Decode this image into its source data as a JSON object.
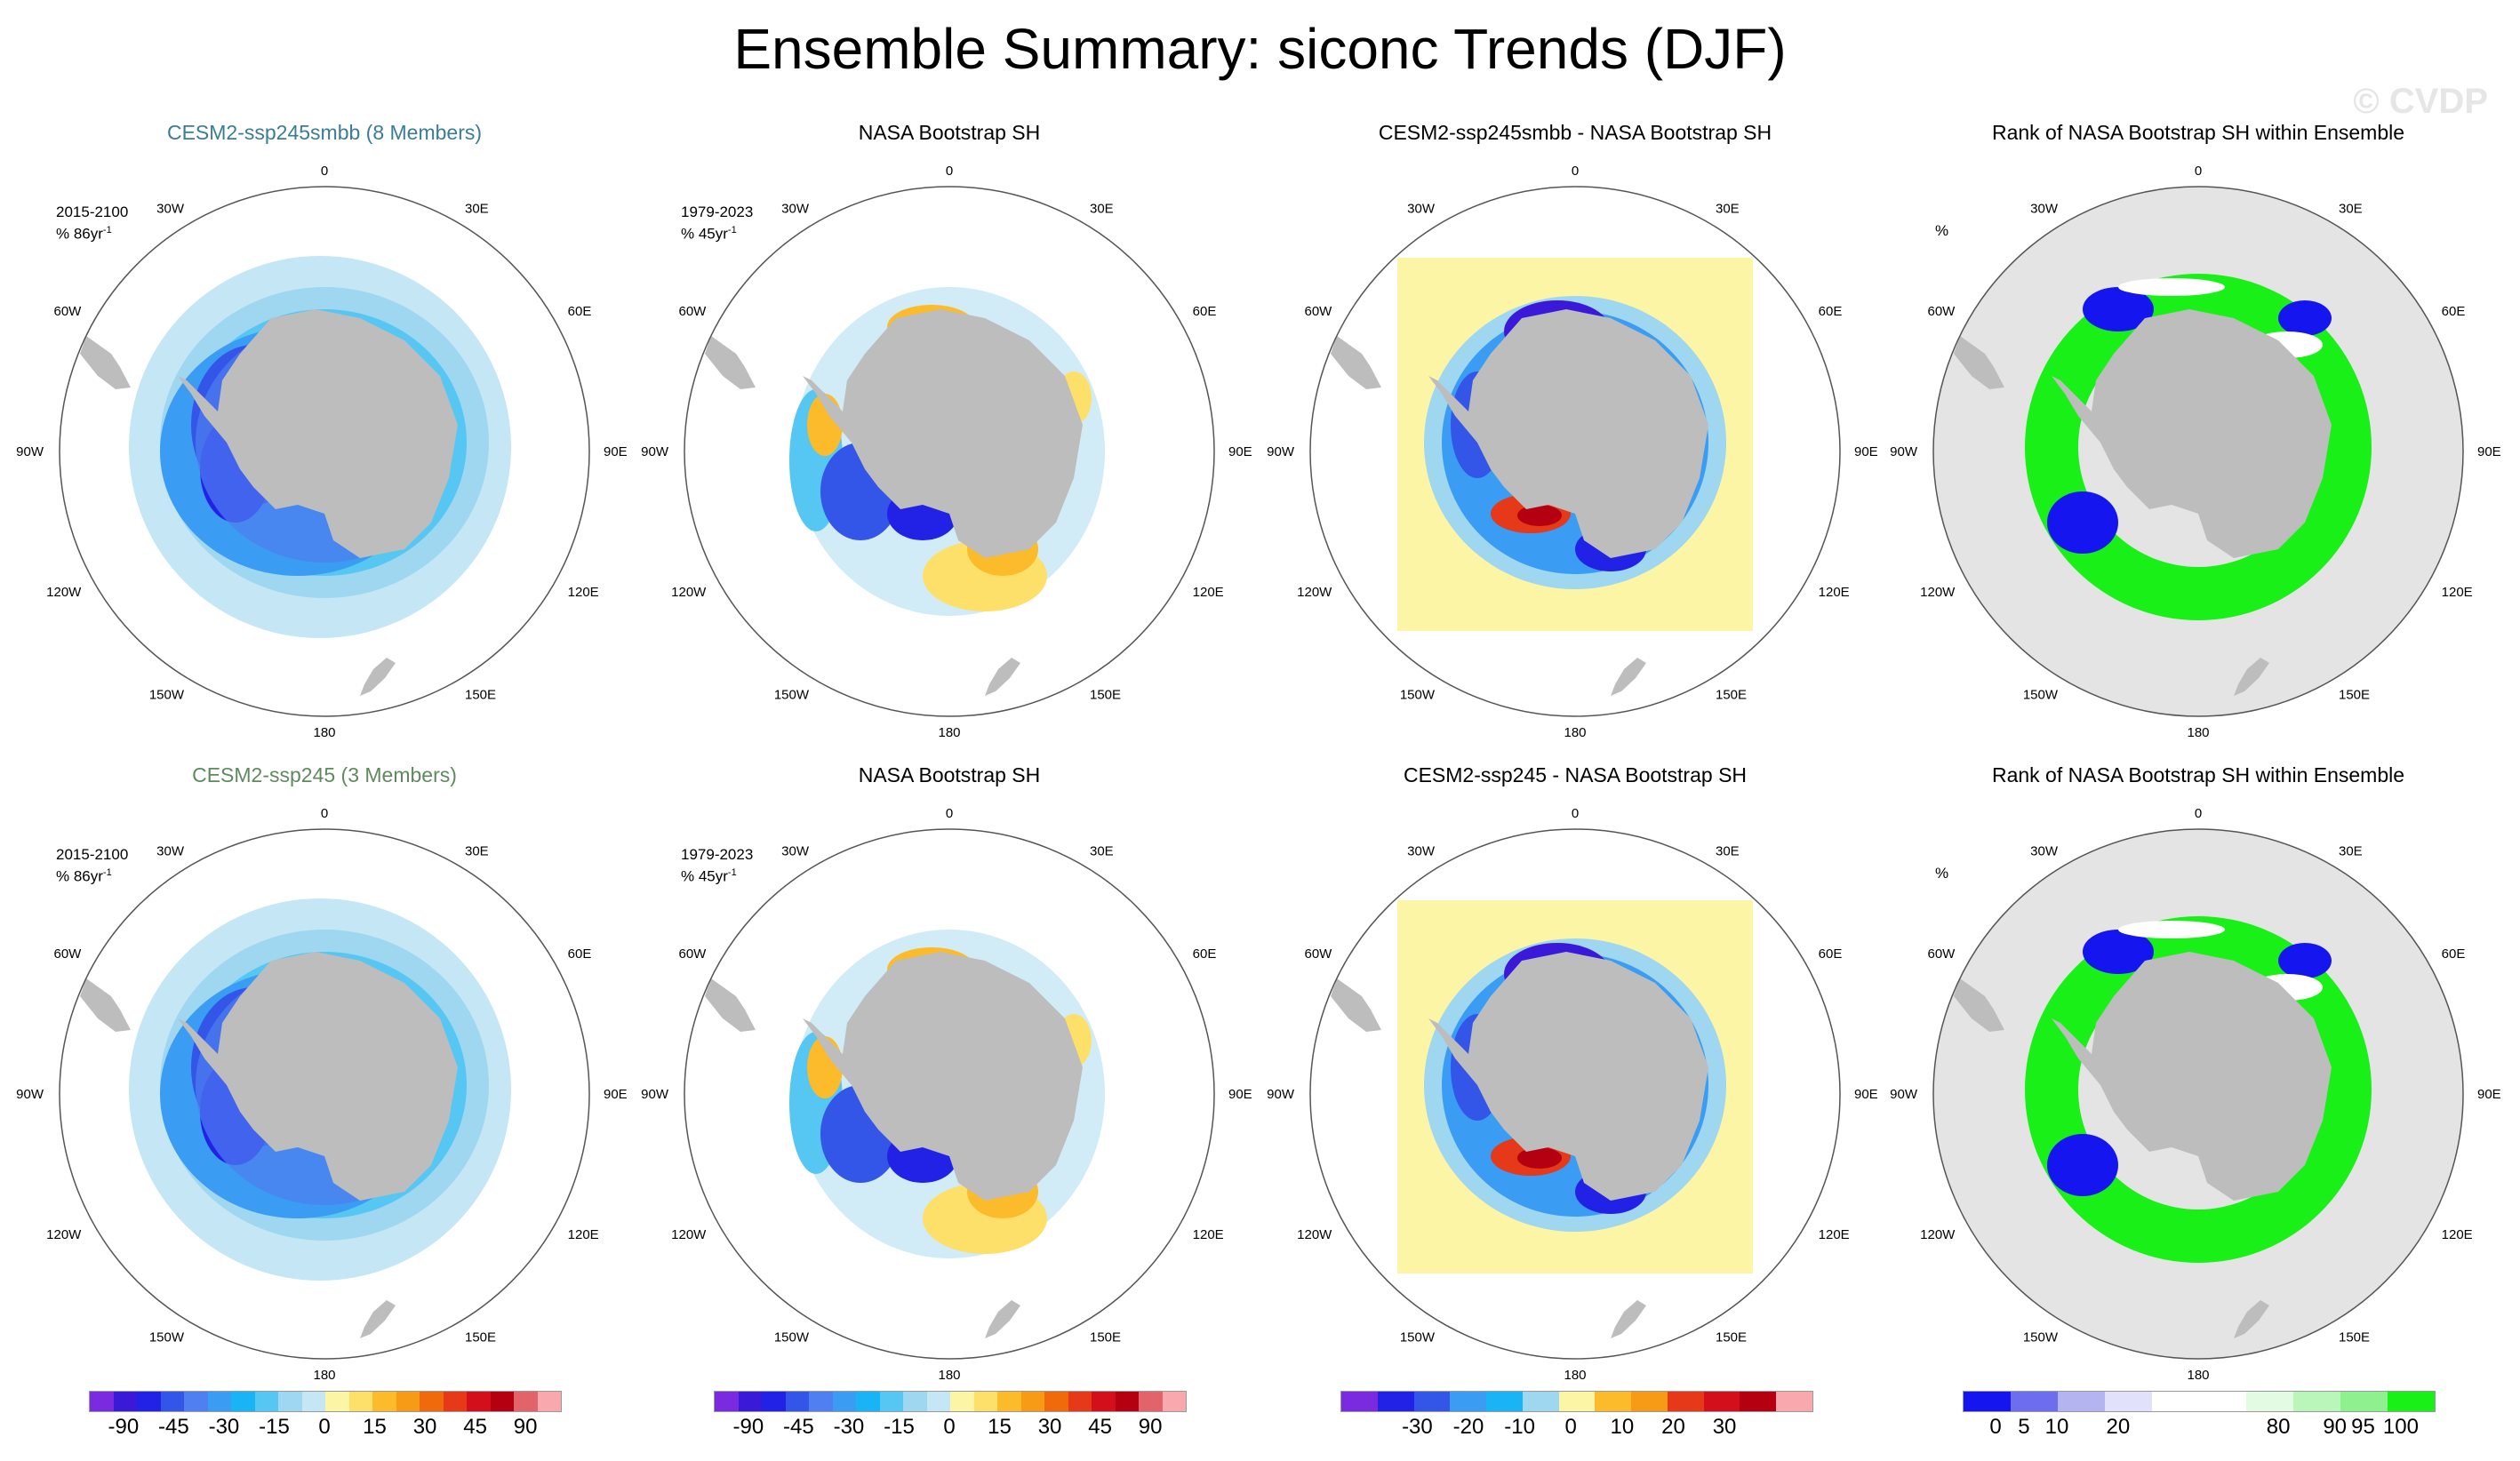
{
  "title": "Ensemble Summary: siconc Trends (DJF)",
  "watermark": "© CVDP",
  "lon_labels": [
    "0",
    "30E",
    "60E",
    "90E",
    "120E",
    "150E",
    "180",
    "150W",
    "120W",
    "90W",
    "60W",
    "30W"
  ],
  "panels": [
    {
      "title": "CESM2-ssp245smbb (8 Members)",
      "title_color": "#3a7d94",
      "period": "2015-2100",
      "units_main": "% 86yr",
      "units_sup": "-1",
      "kind": "model"
    },
    {
      "title": "NASA Bootstrap SH",
      "title_color": "#000000",
      "period": "1979-2023",
      "units_main": "% 45yr",
      "units_sup": "-1",
      "kind": "obs"
    },
    {
      "title": "CESM2-ssp245smbb - NASA Bootstrap SH",
      "title_color": "#000000",
      "period": "",
      "units_main": "",
      "units_sup": "",
      "kind": "diff"
    },
    {
      "title": "Rank of NASA Bootstrap SH within Ensemble",
      "title_color": "#000000",
      "period": "",
      "units_main": "%",
      "units_sup": "",
      "kind": "rank"
    },
    {
      "title": "CESM2-ssp245 (3 Members)",
      "title_color": "#5e8a5e",
      "period": "2015-2100",
      "units_main": "% 86yr",
      "units_sup": "-1",
      "kind": "model"
    },
    {
      "title": "NASA Bootstrap SH",
      "title_color": "#000000",
      "period": "1979-2023",
      "units_main": "% 45yr",
      "units_sup": "-1",
      "kind": "obs"
    },
    {
      "title": "CESM2-ssp245 - NASA Bootstrap SH",
      "title_color": "#000000",
      "period": "",
      "units_main": "",
      "units_sup": "",
      "kind": "diff"
    },
    {
      "title": "Rank of NASA Bootstrap SH within Ensemble",
      "title_color": "#000000",
      "period": "",
      "units_main": "%",
      "units_sup": "",
      "kind": "rank"
    }
  ],
  "chart_data": [
    {
      "type": "heatmap",
      "title": "CESM2-ssp245smbb (8 Members)",
      "projection": "south polar stereographic",
      "value_range": [
        -90,
        90
      ],
      "units": "% 86yr-1"
    },
    {
      "type": "heatmap",
      "title": "NASA Bootstrap SH",
      "projection": "south polar stereographic",
      "value_range": [
        -90,
        90
      ],
      "units": "% 45yr-1"
    },
    {
      "type": "heatmap",
      "title": "CESM2-ssp245smbb - NASA Bootstrap SH",
      "projection": "south polar stereographic",
      "value_range": [
        -30,
        30
      ]
    },
    {
      "type": "heatmap",
      "title": "Rank of NASA Bootstrap SH within Ensemble",
      "projection": "south polar stereographic",
      "value_range": [
        0,
        100
      ],
      "units": "%"
    },
    {
      "type": "heatmap",
      "title": "CESM2-ssp245 (3 Members)",
      "projection": "south polar stereographic",
      "value_range": [
        -90,
        90
      ],
      "units": "% 86yr-1"
    },
    {
      "type": "heatmap",
      "title": "NASA Bootstrap SH",
      "projection": "south polar stereographic",
      "value_range": [
        -90,
        90
      ],
      "units": "% 45yr-1"
    },
    {
      "type": "heatmap",
      "title": "CESM2-ssp245 - NASA Bootstrap SH",
      "projection": "south polar stereographic",
      "value_range": [
        -30,
        30
      ]
    },
    {
      "type": "heatmap",
      "title": "Rank of NASA Bootstrap SH within Ensemble",
      "projection": "south polar stereographic",
      "value_range": [
        0,
        100
      ],
      "units": "%"
    }
  ],
  "legends": [
    {
      "name": "trend",
      "ticks": [
        "-90",
        "-45",
        "-30",
        "-15",
        "0",
        "15",
        "30",
        "45",
        "90"
      ],
      "colors": [
        "#7a2be0",
        "#3a1ad8",
        "#2222e6",
        "#3355e8",
        "#4f7ff0",
        "#3a9cf2",
        "#19b4f5",
        "#56c6f2",
        "#9fd6f0",
        "#c5e6f5",
        "#fdf5a6",
        "#fde06a",
        "#fcbb2a",
        "#f79a15",
        "#f06a0c",
        "#e6391a",
        "#d20f1a",
        "#b50012",
        "#e3636b",
        "#f9a9ae"
      ]
    },
    {
      "name": "trend",
      "ticks": [
        "-90",
        "-45",
        "-30",
        "-15",
        "0",
        "15",
        "30",
        "45",
        "90"
      ],
      "colors": [
        "#7a2be0",
        "#3a1ad8",
        "#2222e6",
        "#3355e8",
        "#4f7ff0",
        "#3a9cf2",
        "#19b4f5",
        "#56c6f2",
        "#9fd6f0",
        "#c5e6f5",
        "#fdf5a6",
        "#fde06a",
        "#fcbb2a",
        "#f79a15",
        "#f06a0c",
        "#e6391a",
        "#d20f1a",
        "#b50012",
        "#e3636b",
        "#f9a9ae"
      ]
    },
    {
      "name": "diff",
      "ticks": [
        "-30",
        "-20",
        "-10",
        "0",
        "10",
        "20",
        "30"
      ],
      "colors": [
        "#7a2be0",
        "#2222e6",
        "#3355e8",
        "#3a9cf2",
        "#19b4f5",
        "#9fd6f0",
        "#fdf5a6",
        "#fcbb2a",
        "#f79a15",
        "#e6391a",
        "#d20f1a",
        "#b50012",
        "#f9a9ae"
      ]
    },
    {
      "name": "rank",
      "ticks": [
        "0",
        "5",
        "10",
        "20",
        "80",
        "90",
        "95",
        "100"
      ],
      "colors": [
        "#1515f0",
        "#6d6df0",
        "#b4b4f0",
        "#e1e1fb",
        "#ffffff",
        "#ffffff",
        "#e2fbe2",
        "#baf5ba",
        "#8ff08f",
        "#18f018"
      ]
    }
  ]
}
